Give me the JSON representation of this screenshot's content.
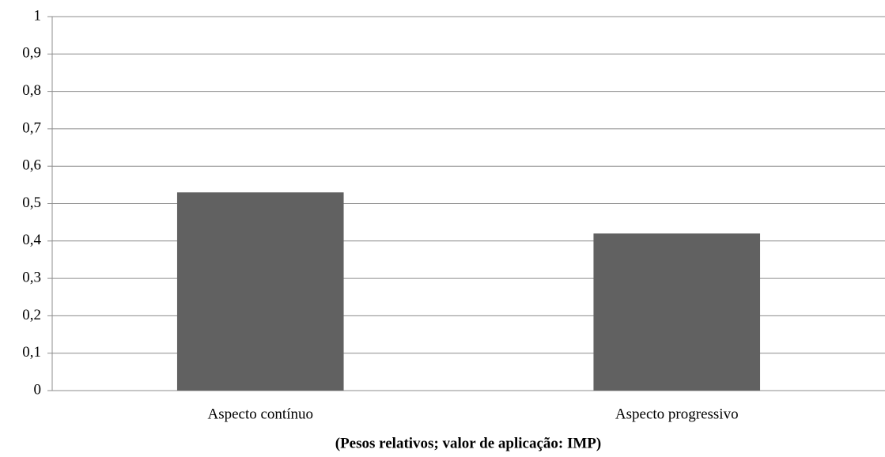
{
  "chart_data": {
    "type": "bar",
    "x_label": "(Pesos relativos; valor de aplicação: IMP)",
    "categories": [
      "Aspecto contínuo",
      "Aspecto progressivo"
    ],
    "values": [
      0.53,
      0.42
    ],
    "color": "#616161",
    "ylim": [
      0,
      1
    ],
    "yticks": [
      0,
      {
        "value": 0.1,
        "label": "0,1"
      },
      {
        "value": 0.2,
        "label": "0,2"
      },
      {
        "value": 0.3,
        "label": "0,3"
      },
      {
        "value": 0.4,
        "label": "0,4"
      },
      {
        "value": 0.5,
        "label": "0,5"
      },
      {
        "value": 0.6,
        "label": "0,6"
      },
      {
        "value": 0.7,
        "label": "0,7"
      },
      {
        "value": 0.8,
        "label": "0,8"
      },
      {
        "value": 0.9,
        "label": "0,9"
      },
      1
    ],
    "grid": true
  }
}
